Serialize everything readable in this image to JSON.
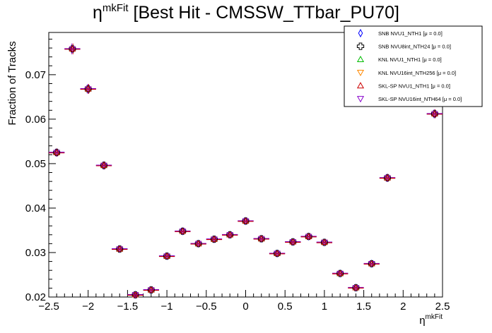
{
  "chart_data": {
    "type": "scatter",
    "title": {
      "base": "η",
      "sup": "mkFit",
      "rest": " [Best Hit - CMSSW_TTbar_PU70]"
    },
    "xlabel": {
      "base": "η",
      "sup": "mkFit"
    },
    "ylabel": "Fraction of Tracks",
    "xlim": [
      -2.5,
      2.5
    ],
    "ylim": [
      0.02,
      0.0795
    ],
    "x_ticks": [
      -2.5,
      -2,
      -1.5,
      -1,
      -0.5,
      0,
      0.5,
      1,
      1.5,
      2,
      2.5
    ],
    "x_tick_labels": [
      "−2.5",
      "−2",
      "−1.5",
      "−1",
      "−0.5",
      "0",
      "0.5",
      "1",
      "1.5",
      "2",
      "2.5"
    ],
    "y_ticks": [
      0.02,
      0.03,
      0.04,
      0.05,
      0.06,
      0.07
    ],
    "y_tick_labels": [
      "0.02",
      "0.03",
      "0.04",
      "0.05",
      "0.06",
      "0.07"
    ],
    "bin_half_width": 0.1,
    "x": [
      -2.4,
      -2.2,
      -2.0,
      -1.8,
      -1.6,
      -1.4,
      -1.2,
      -1.0,
      -0.8,
      -0.6,
      -0.4,
      -0.2,
      0.0,
      0.2,
      0.4,
      0.6,
      0.8,
      1.0,
      1.2,
      1.4,
      1.6,
      1.8,
      2.4
    ],
    "y": [
      0.0525,
      0.0758,
      0.0668,
      0.0496,
      0.0308,
      0.0205,
      0.0216,
      0.0292,
      0.0348,
      0.032,
      0.033,
      0.034,
      0.0371,
      0.0331,
      0.0298,
      0.0324,
      0.0336,
      0.0323,
      0.0253,
      0.0221,
      0.0275,
      0.0468,
      0.0612
    ],
    "y_err": [
      0.0009,
      0.0012,
      0.0011,
      0.0009,
      0.0007,
      0.0006,
      0.0006,
      0.0007,
      0.0008,
      0.0007,
      0.0007,
      0.0007,
      0.0008,
      0.0007,
      0.0007,
      0.0007,
      0.0007,
      0.0007,
      0.0007,
      0.0006,
      0.0007,
      0.0009,
      0.001
    ],
    "series": [
      {
        "name": "SNB NVU1_NTH1 [μ =  0.0]",
        "marker": "diamond",
        "color": "#0000ff"
      },
      {
        "name": "SNB NVU8int_NTH24 [μ =  0.0]",
        "marker": "cross",
        "color": "#000000"
      },
      {
        "name": "KNL NVU1_NTH1 [μ =  0.0]",
        "marker": "triangle-up",
        "color": "#00bb00"
      },
      {
        "name": "KNL NVU16int_NTH256 [μ =  0.0]",
        "marker": "triangle-down",
        "color": "#ff8800"
      },
      {
        "name": "SKL-SP NVU1_NTH1 [μ =  0.0]",
        "marker": "triangle-up",
        "color": "#cc0000"
      },
      {
        "name": "SKL-SP NVU16int_NTH64 [μ =  0.0]",
        "marker": "triangle-down",
        "color": "#8800cc"
      }
    ],
    "legend_position": "top-right",
    "grid": false
  }
}
